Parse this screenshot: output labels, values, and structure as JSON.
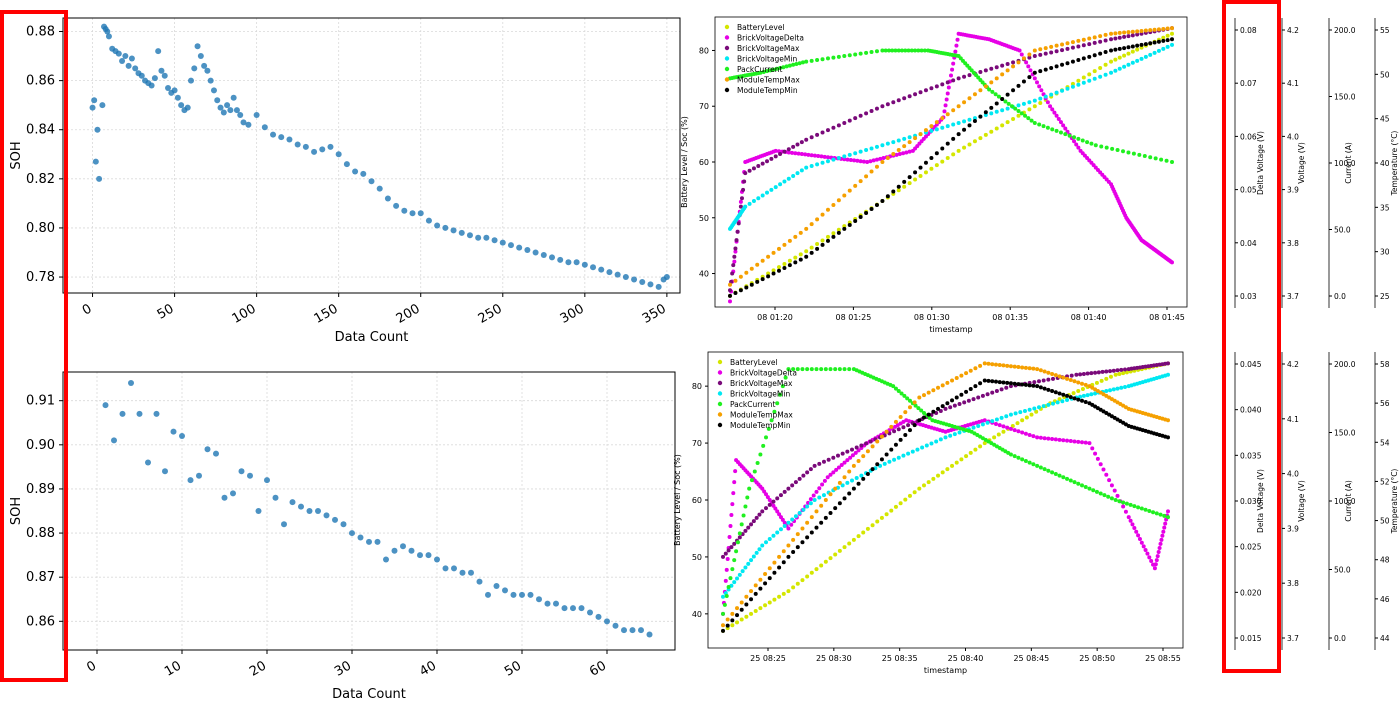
{
  "colors": {
    "soh_marker": "#1f77b4",
    "highlight": "#ff0000",
    "grid": "#d9d9d9",
    "BatteryLevel": "#d4e600",
    "BrickVoltageDelta": "#e600e6",
    "BrickVoltageMax": "#7a0a7a",
    "BrickVoltageMin": "#00e8f2",
    "PackCurrent": "#20f020",
    "ModuleTempMax": "#f5a000",
    "ModuleTempMin": "#000000"
  },
  "chart_data": [
    {
      "type": "scatter",
      "xlabel": "Data Count",
      "ylabel": "SOH",
      "xlim": [
        -18,
        358
      ],
      "ylim": [
        0.7735,
        0.8855
      ],
      "xticks": [
        0,
        50,
        100,
        150,
        200,
        250,
        300,
        350
      ],
      "yticks": [
        0.78,
        0.8,
        0.82,
        0.84,
        0.86,
        0.88
      ],
      "grid": true,
      "series": [
        {
          "x": [
            0,
            1,
            2,
            3,
            4,
            6,
            7,
            8,
            9,
            10,
            12,
            14,
            16,
            18,
            20,
            22,
            24,
            26,
            28,
            30,
            32,
            34,
            36,
            38,
            40,
            42,
            44,
            46,
            48,
            50,
            52,
            54,
            56,
            58,
            60,
            62,
            64,
            66,
            68,
            70,
            72,
            74,
            76,
            78,
            80,
            82,
            84,
            86,
            88,
            90,
            92,
            95,
            100,
            105,
            110,
            115,
            120,
            125,
            130,
            135,
            140,
            145,
            150,
            155,
            160,
            165,
            170,
            175,
            180,
            185,
            190,
            195,
            200,
            205,
            210,
            215,
            220,
            225,
            230,
            235,
            240,
            245,
            250,
            255,
            260,
            265,
            270,
            275,
            280,
            285,
            290,
            295,
            300,
            305,
            310,
            315,
            320,
            325,
            330,
            335,
            340,
            345,
            348,
            350
          ],
          "y": [
            0.849,
            0.852,
            0.827,
            0.84,
            0.82,
            0.85,
            0.882,
            0.881,
            0.88,
            0.878,
            0.873,
            0.872,
            0.871,
            0.868,
            0.87,
            0.866,
            0.869,
            0.865,
            0.863,
            0.862,
            0.86,
            0.859,
            0.858,
            0.861,
            0.872,
            0.864,
            0.862,
            0.857,
            0.855,
            0.856,
            0.853,
            0.85,
            0.848,
            0.849,
            0.86,
            0.865,
            0.874,
            0.87,
            0.866,
            0.864,
            0.86,
            0.856,
            0.852,
            0.849,
            0.847,
            0.85,
            0.848,
            0.853,
            0.848,
            0.846,
            0.843,
            0.842,
            0.846,
            0.841,
            0.838,
            0.837,
            0.836,
            0.834,
            0.833,
            0.831,
            0.832,
            0.833,
            0.83,
            0.826,
            0.823,
            0.822,
            0.819,
            0.816,
            0.812,
            0.809,
            0.807,
            0.806,
            0.806,
            0.803,
            0.801,
            0.8,
            0.799,
            0.798,
            0.797,
            0.796,
            0.796,
            0.795,
            0.794,
            0.793,
            0.792,
            0.791,
            0.79,
            0.789,
            0.788,
            0.787,
            0.786,
            0.786,
            0.785,
            0.784,
            0.783,
            0.782,
            0.781,
            0.78,
            0.779,
            0.778,
            0.777,
            0.776,
            0.779,
            0.78
          ]
        }
      ]
    },
    {
      "type": "scatter",
      "xlabel": "Data Count",
      "ylabel": "SOH",
      "xlim": [
        -4,
        68
      ],
      "ylim": [
        0.8535,
        0.9165
      ],
      "xticks": [
        0,
        10,
        20,
        30,
        40,
        50,
        60
      ],
      "yticks": [
        0.86,
        0.87,
        0.88,
        0.89,
        0.9,
        0.91
      ],
      "grid": true,
      "series": [
        {
          "x": [
            1,
            2,
            3,
            4,
            5,
            6,
            7,
            8,
            9,
            10,
            11,
            12,
            13,
            14,
            15,
            16,
            17,
            18,
            19,
            20,
            21,
            22,
            23,
            24,
            25,
            26,
            27,
            28,
            29,
            30,
            31,
            32,
            33,
            34,
            35,
            36,
            37,
            38,
            39,
            40,
            41,
            42,
            43,
            44,
            45,
            46,
            47,
            48,
            49,
            50,
            51,
            52,
            53,
            54,
            55,
            56,
            57,
            58,
            59,
            60,
            61,
            62,
            63,
            64,
            65
          ],
          "y": [
            0.909,
            0.901,
            0.907,
            0.914,
            0.907,
            0.896,
            0.907,
            0.894,
            0.903,
            0.902,
            0.892,
            0.893,
            0.899,
            0.898,
            0.888,
            0.889,
            0.894,
            0.893,
            0.885,
            0.892,
            0.888,
            0.882,
            0.887,
            0.886,
            0.885,
            0.885,
            0.884,
            0.883,
            0.882,
            0.88,
            0.879,
            0.878,
            0.878,
            0.874,
            0.876,
            0.877,
            0.876,
            0.875,
            0.875,
            0.874,
            0.872,
            0.872,
            0.871,
            0.871,
            0.869,
            0.866,
            0.868,
            0.867,
            0.866,
            0.866,
            0.866,
            0.865,
            0.864,
            0.864,
            0.863,
            0.863,
            0.863,
            0.862,
            0.861,
            0.86,
            0.859,
            0.858,
            0.858,
            0.858,
            0.857
          ]
        }
      ]
    },
    {
      "type": "scatter",
      "xlabel": "timestamp",
      "ylabel": "Battery Level / Soc (%)",
      "xticks": [
        "08 01:20",
        "08 01:25",
        "08 01:30",
        "08 01:35",
        "08 01:40",
        "08 01:45"
      ],
      "yticks": [
        40,
        50,
        60,
        70,
        80
      ],
      "ylim": [
        34,
        86
      ],
      "legend": "top-left",
      "series": [
        {
          "name": "BatteryLevel",
          "x": [
            0,
            5,
            10,
            15,
            20,
            25,
            29
          ],
          "y": [
            36,
            44,
            53,
            62,
            70,
            78,
            83
          ]
        },
        {
          "name": "BrickVoltageDelta",
          "x": [
            0,
            1,
            3,
            6,
            9,
            12,
            14,
            15,
            17,
            19,
            21,
            23,
            25,
            26,
            27,
            28,
            29
          ],
          "y": [
            35,
            60,
            62,
            61,
            60,
            62,
            68,
            83,
            82,
            80,
            70,
            62,
            56,
            50,
            46,
            44,
            42
          ]
        },
        {
          "name": "BrickVoltageMax",
          "x": [
            0,
            1,
            5,
            10,
            15,
            20,
            25,
            29
          ],
          "y": [
            37,
            58,
            64,
            70,
            75,
            79,
            82,
            84
          ]
        },
        {
          "name": "BrickVoltageMin",
          "x": [
            0,
            1,
            5,
            10,
            15,
            20,
            25,
            29
          ],
          "y": [
            48,
            52,
            59,
            63,
            67,
            71,
            76,
            81
          ]
        },
        {
          "name": "PackCurrent",
          "x": [
            0,
            2,
            5,
            10,
            13,
            15,
            17,
            20,
            24,
            29
          ],
          "y": [
            75,
            76,
            78,
            80,
            80,
            79,
            73,
            67,
            63,
            60
          ]
        },
        {
          "name": "ModuleTempMax",
          "x": [
            0,
            5,
            10,
            15,
            20,
            25,
            29
          ],
          "y": [
            38,
            48,
            60,
            70,
            80,
            83,
            84
          ]
        },
        {
          "name": "ModuleTempMin",
          "x": [
            0,
            5,
            10,
            15,
            20,
            25,
            29
          ],
          "y": [
            36,
            43,
            53,
            65,
            76,
            80,
            82
          ]
        }
      ]
    },
    {
      "type": "scatter",
      "xlabel": "timestamp",
      "ylabel": "Battery Level / Soc (%)",
      "xticks": [
        "25 08:25",
        "25 08:30",
        "25 08:35",
        "25 08:40",
        "25 08:45",
        "25 08:50",
        "25 08:55"
      ],
      "yticks": [
        40,
        50,
        60,
        70,
        80
      ],
      "ylim": [
        34,
        86
      ],
      "legend": "top-left",
      "series": [
        {
          "name": "BatteryLevel",
          "x": [
            0,
            5,
            10,
            15,
            20,
            25,
            30,
            34
          ],
          "y": [
            37,
            44,
            53,
            62,
            70,
            77,
            82,
            84
          ]
        },
        {
          "name": "BrickVoltageDelta",
          "x": [
            0,
            1,
            3,
            5,
            8,
            11,
            14,
            17,
            20,
            24,
            28,
            31,
            33,
            34
          ],
          "y": [
            40,
            67,
            62,
            55,
            64,
            70,
            74,
            72,
            74,
            71,
            70,
            57,
            48,
            58
          ]
        },
        {
          "name": "BrickVoltageMax",
          "x": [
            0,
            3,
            7,
            12,
            17,
            22,
            27,
            31,
            34
          ],
          "y": [
            50,
            58,
            66,
            71,
            76,
            80,
            82,
            83,
            84
          ]
        },
        {
          "name": "BrickVoltageMin",
          "x": [
            0,
            3,
            7,
            12,
            17,
            22,
            27,
            31,
            34
          ],
          "y": [
            43,
            52,
            60,
            66,
            71,
            75,
            78,
            80,
            82
          ]
        },
        {
          "name": "PackCurrent",
          "x": [
            0,
            2,
            5,
            10,
            13,
            16,
            19,
            22,
            26,
            30,
            34
          ],
          "y": [
            40,
            62,
            83,
            83,
            80,
            74,
            72,
            68,
            64,
            60,
            57
          ]
        },
        {
          "name": "ModuleTempMax",
          "x": [
            0,
            5,
            10,
            15,
            20,
            24,
            28,
            31,
            34
          ],
          "y": [
            38,
            52,
            66,
            78,
            84,
            83,
            80,
            76,
            74
          ]
        },
        {
          "name": "ModuleTempMin",
          "x": [
            0,
            5,
            10,
            15,
            20,
            24,
            28,
            31,
            34
          ],
          "y": [
            37,
            50,
            62,
            74,
            81,
            80,
            77,
            73,
            71
          ]
        }
      ]
    }
  ],
  "axes_top": [
    {
      "label": "Delta Voltage (V)",
      "ticks": [
        "0.08",
        "0.07",
        "0.06",
        "0.05",
        "0.04",
        "0.03"
      ]
    },
    {
      "label": "Voltage (V)",
      "ticks": [
        "4.2",
        "4.1",
        "4.0",
        "3.9",
        "3.8",
        "3.7"
      ]
    },
    {
      "label": "Current (A)",
      "ticks": [
        "200.0",
        "150.0",
        "100.0",
        "50.0",
        "0.0"
      ]
    },
    {
      "label": "Temperature (°C)",
      "ticks": [
        "55",
        "50",
        "45",
        "40",
        "35",
        "30",
        "25"
      ]
    }
  ],
  "axes_bottom": [
    {
      "label": "Delta Voltage (V)",
      "ticks": [
        "0.045",
        "0.040",
        "0.035",
        "0.030",
        "0.025",
        "0.020",
        "0.015"
      ]
    },
    {
      "label": "Voltage (V)",
      "ticks": [
        "4.2",
        "4.1",
        "4.0",
        "3.9",
        "3.8",
        "3.7"
      ]
    },
    {
      "label": "Current (A)",
      "ticks": [
        "200.0",
        "150.0",
        "100.0",
        "50.0",
        "0.0"
      ]
    },
    {
      "label": "Temperature (°C)",
      "ticks": [
        "58",
        "56",
        "54",
        "52",
        "50",
        "48",
        "46",
        "44"
      ]
    }
  ]
}
